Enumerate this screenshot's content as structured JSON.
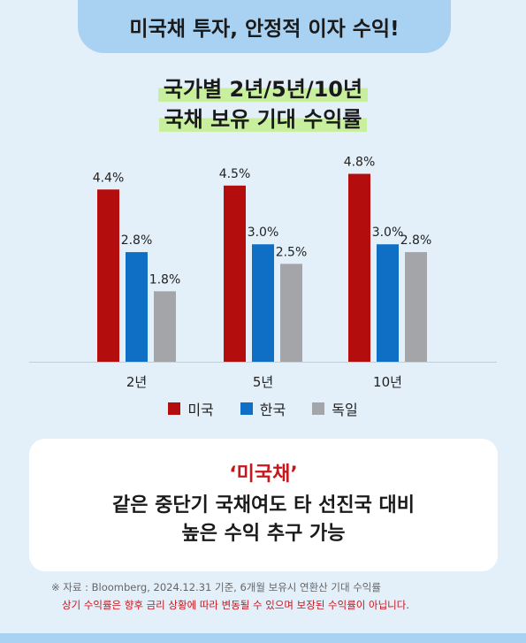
{
  "banner": "미국채 투자, 안정적 이자 수익!",
  "chart_data": {
    "type": "bar",
    "title_lines": [
      "국가별 2년/5년/10년",
      "국채 보유 기대 수익률"
    ],
    "categories": [
      "2년",
      "5년",
      "10년"
    ],
    "series": [
      {
        "name": "미국",
        "color": "#b30d0d",
        "values": [
          4.4,
          4.5,
          4.8
        ],
        "labels": [
          "4.4%",
          "4.5%",
          "4.8%"
        ]
      },
      {
        "name": "한국",
        "color": "#0e6fc4",
        "values": [
          2.8,
          3.0,
          3.0
        ],
        "labels": [
          "2.8%",
          "3.0%",
          "3.0%"
        ]
      },
      {
        "name": "독일",
        "color": "#a3a5a8",
        "values": [
          1.8,
          2.5,
          2.8
        ],
        "labels": [
          "1.8%",
          "2.5%",
          "2.8%"
        ]
      }
    ],
    "ylim": [
      0,
      5.4
    ],
    "grid": false,
    "legend": "bottom"
  },
  "card": {
    "accent": "‘미국채’",
    "line1": "같은 중단기 국채여도 타 선진국 대비",
    "line2": "높은 수익 추구 가능"
  },
  "footnote": {
    "source": "※ 자료 : Bloomberg, 2024.12.31 기준, 6개월 보유시 연환산 기대 수익률",
    "disclaimer": "상기 수익률은 향후 금리 상황에 따라 변동될 수 있으며 보장된 수익률이 아닙니다."
  }
}
